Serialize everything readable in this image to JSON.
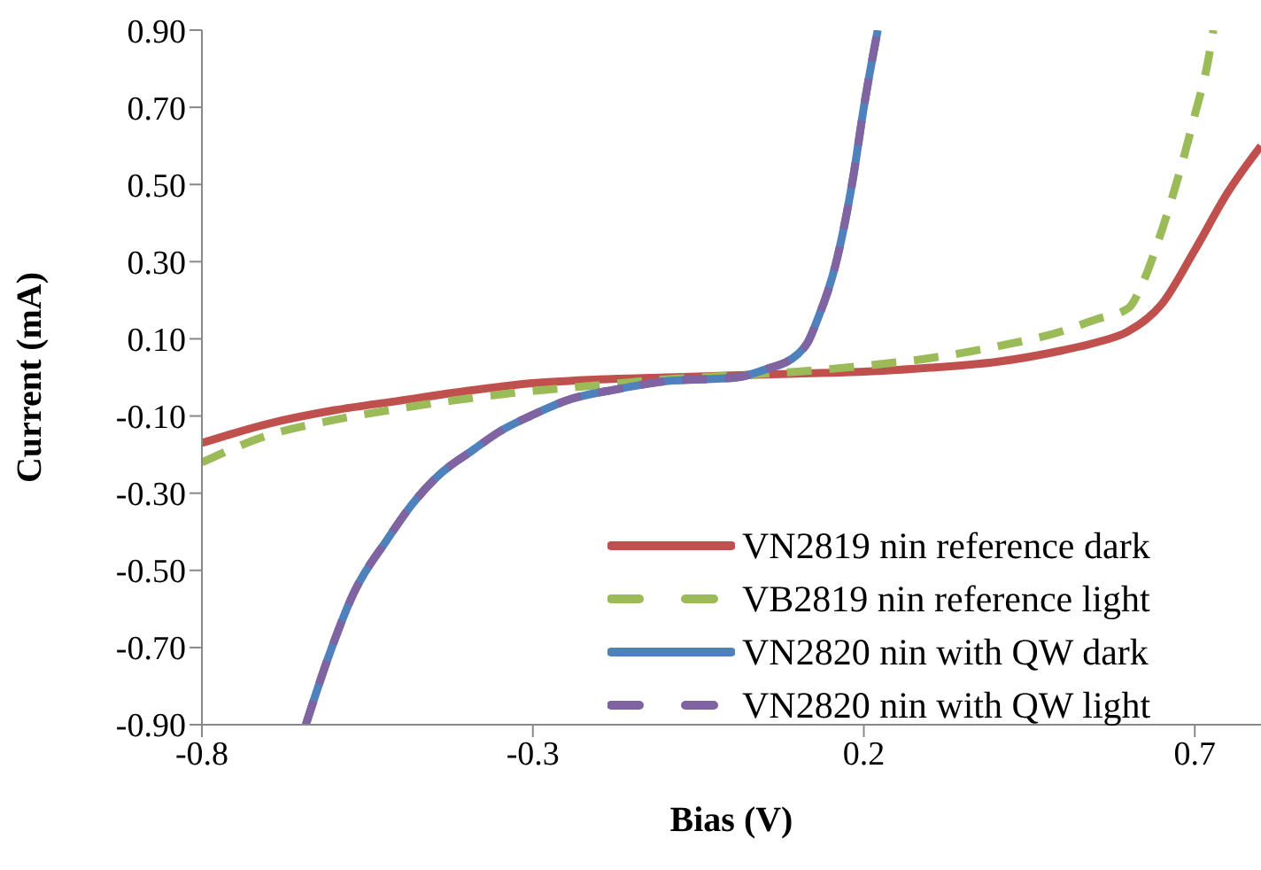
{
  "chart_data": {
    "type": "line",
    "xlabel": "Bias (V)",
    "ylabel": "Current (mA)",
    "xlim": [
      -0.8,
      0.8
    ],
    "xticks": [
      -0.8,
      -0.3,
      0.2,
      0.7
    ],
    "ylim": [
      -0.9,
      0.9
    ],
    "yticks": [
      {
        "value": -0.9,
        "label": "-0.90"
      },
      {
        "value": -0.7,
        "label": "-0.70"
      },
      {
        "value": -0.5,
        "label": "-0.50"
      },
      {
        "value": -0.3,
        "label": "-0.30"
      },
      {
        "value": -0.1,
        "label": "-0.10"
      },
      {
        "value": 0.1,
        "label": "0.10"
      },
      {
        "value": 0.3,
        "label": "0.30"
      },
      {
        "value": 0.5,
        "label": "0.50"
      },
      {
        "value": 0.7,
        "label": "0.70"
      },
      {
        "value": 0.9,
        "label": "0.90"
      }
    ],
    "grid": false,
    "legend": "bottom right",
    "marker": "none",
    "series": [
      {
        "name": "VN2819 nin reference dark",
        "color": "#c0504d",
        "line_style": "solid",
        "x": [
          -0.8,
          -0.7,
          -0.6,
          -0.5,
          -0.4,
          -0.3,
          -0.2,
          -0.1,
          0,
          0.1,
          0.2,
          0.3,
          0.4,
          0.5,
          0.55,
          0.6,
          0.65,
          0.7,
          0.75,
          0.8
        ],
        "values": [
          -0.17,
          -0.12,
          -0.085,
          -0.06,
          -0.035,
          -0.015,
          -0.005,
          0,
          0.005,
          0.01,
          0.015,
          0.025,
          0.04,
          0.07,
          0.09,
          0.12,
          0.19,
          0.33,
          0.48,
          0.6
        ]
      },
      {
        "name": "VB2819 nin reference light",
        "color": "#9bbb59",
        "line_style": "dashed",
        "x": [
          -0.8,
          -0.7,
          -0.6,
          -0.5,
          -0.4,
          -0.3,
          -0.2,
          -0.1,
          0,
          0.1,
          0.2,
          0.3,
          0.4,
          0.5,
          0.55,
          0.6,
          0.62,
          0.65,
          0.68,
          0.7,
          0.72,
          0.728
        ],
        "values": [
          -0.22,
          -0.15,
          -0.11,
          -0.08,
          -0.055,
          -0.035,
          -0.02,
          -0.005,
          0.005,
          0.015,
          0.03,
          0.05,
          0.08,
          0.12,
          0.15,
          0.18,
          0.24,
          0.38,
          0.55,
          0.68,
          0.82,
          0.9
        ]
      },
      {
        "name": "VN2820 nin with QW dark",
        "color": "#4f81bd",
        "line_style": "solid",
        "x": [
          -0.643,
          -0.61,
          -0.571,
          -0.52,
          -0.483,
          -0.44,
          -0.392,
          -0.35,
          -0.304,
          -0.25,
          -0.171,
          -0.1,
          0.008,
          0.05,
          0.1,
          0.115,
          0.13,
          0.157,
          0.184,
          0.2,
          0.221
        ],
        "values": [
          -0.9,
          -0.73,
          -0.56,
          -0.42,
          -0.33,
          -0.25,
          -0.19,
          -0.14,
          -0.1,
          -0.06,
          -0.03,
          -0.01,
          0,
          0.02,
          0.06,
          0.09,
          0.15,
          0.29,
          0.52,
          0.7,
          0.9
        ]
      },
      {
        "name": "VN2820 nin with QW light",
        "color": "#8064a2",
        "line_style": "dashed",
        "x": [
          -0.643,
          -0.61,
          -0.571,
          -0.52,
          -0.483,
          -0.44,
          -0.392,
          -0.35,
          -0.304,
          -0.25,
          -0.171,
          -0.1,
          0.008,
          0.05,
          0.1,
          0.115,
          0.13,
          0.157,
          0.184,
          0.2,
          0.221
        ],
        "values": [
          -0.9,
          -0.73,
          -0.56,
          -0.42,
          -0.33,
          -0.25,
          -0.19,
          -0.14,
          -0.1,
          -0.06,
          -0.03,
          -0.01,
          0,
          0.02,
          0.06,
          0.09,
          0.15,
          0.29,
          0.52,
          0.7,
          0.9
        ]
      }
    ]
  }
}
